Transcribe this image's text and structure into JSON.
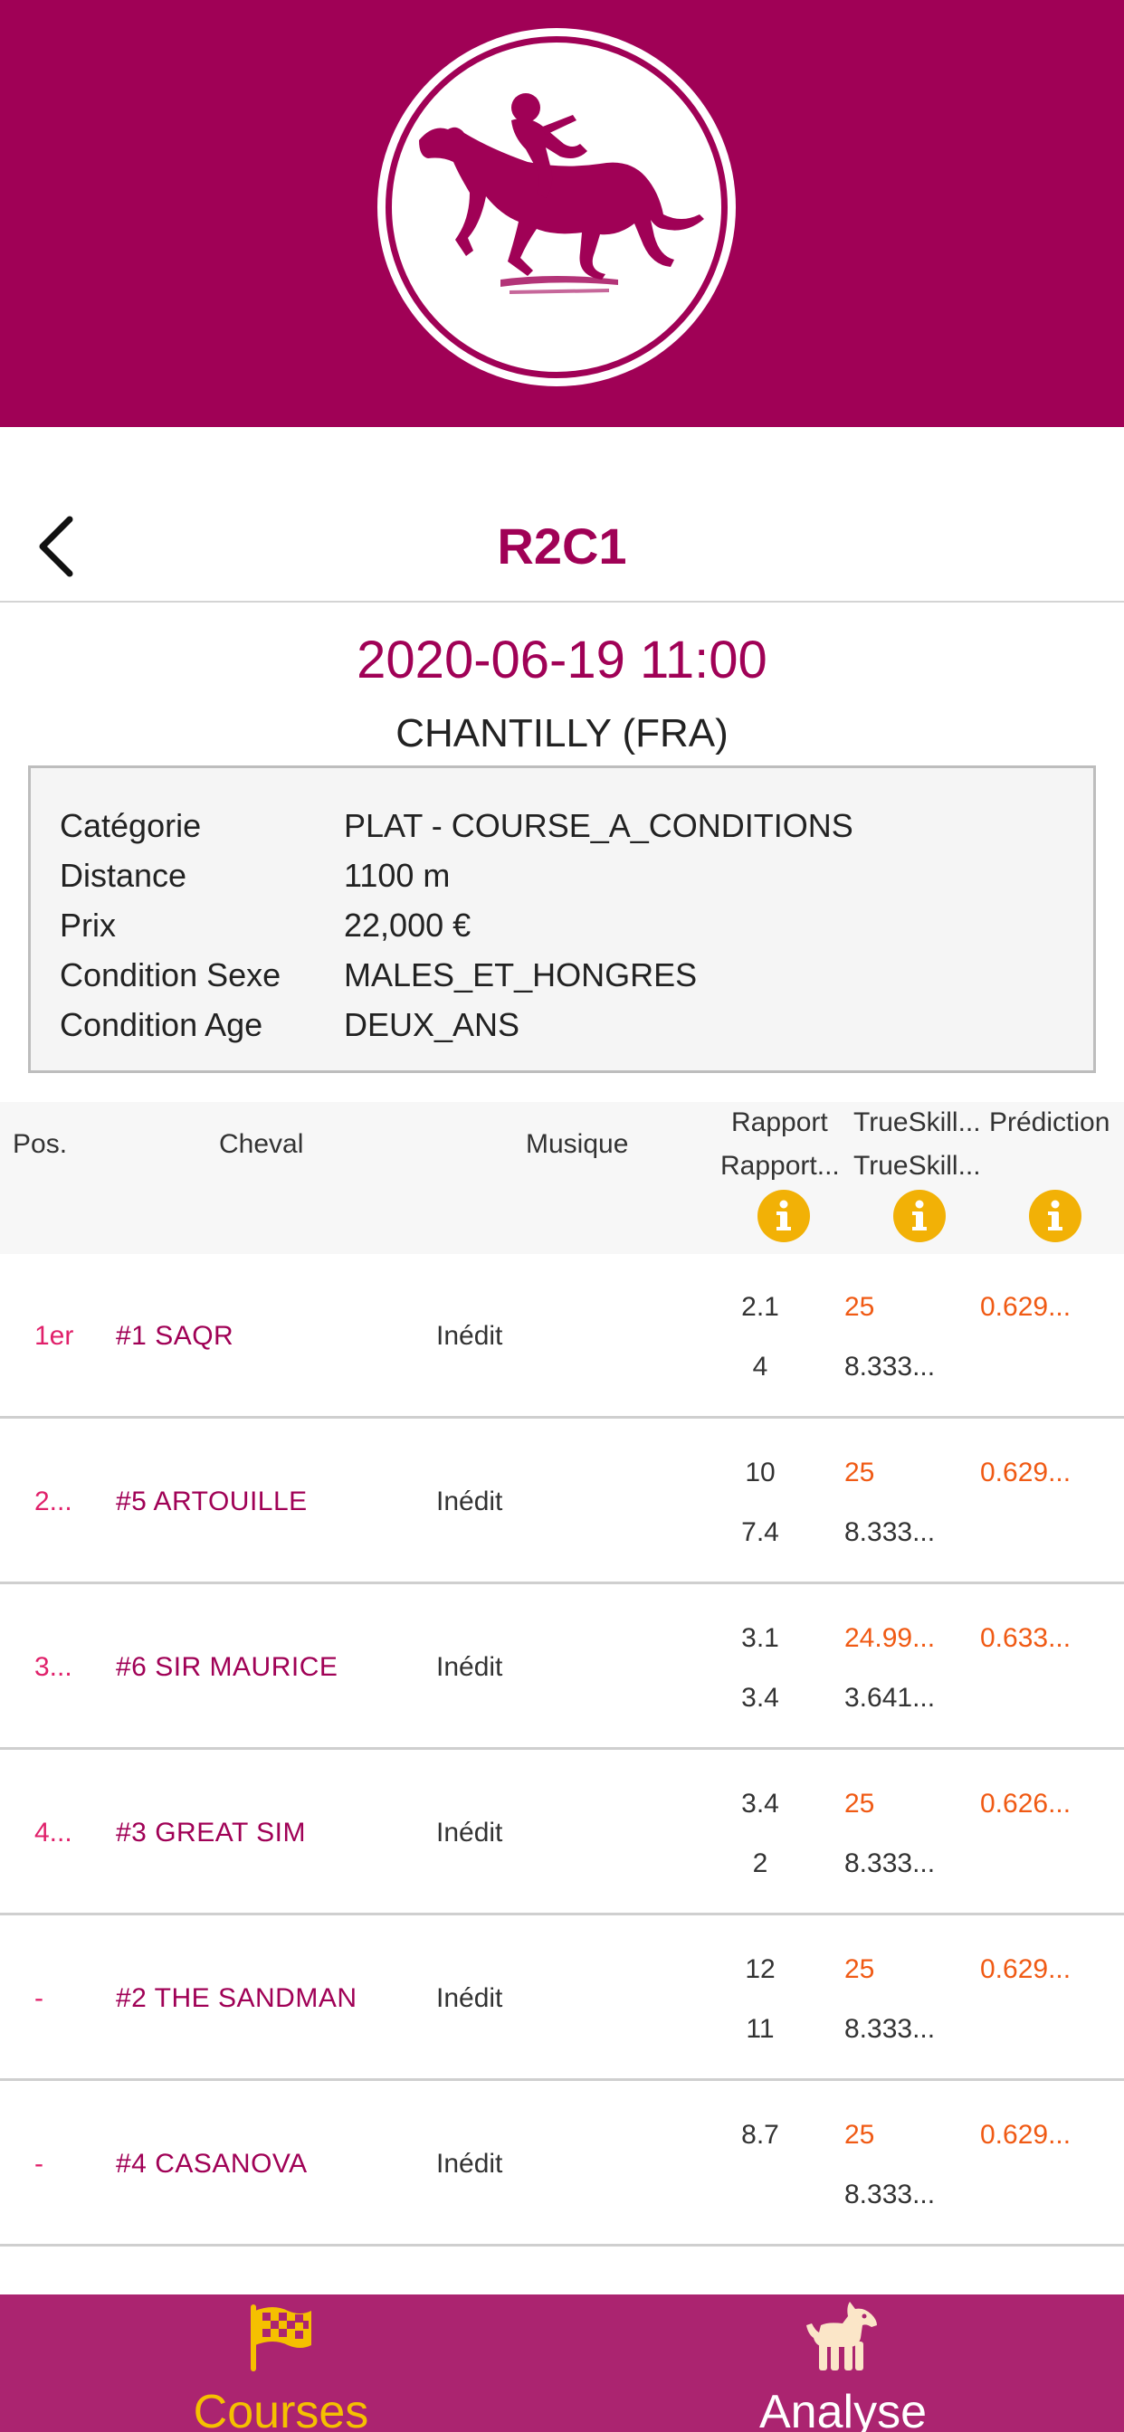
{
  "colors": {
    "brand": "#a00156",
    "accent_orange": "#f05a14",
    "tab_active": "#f5c000",
    "tab_inactive": "#ffffff",
    "tabbar": "#ab2470"
  },
  "nav": {
    "title": "R2C1",
    "back_icon": "chevron-left-icon"
  },
  "race": {
    "datetime": "2020-06-19 11:00",
    "venue": "CHANTILLY (FRA)"
  },
  "details": [
    {
      "label": "Catégorie",
      "value": "PLAT - COURSE_A_CONDITIONS"
    },
    {
      "label": "Distance",
      "value": "1100 m"
    },
    {
      "label": "Prix",
      "value": "22,000 €"
    },
    {
      "label": "Condition Sexe",
      "value": "MALES_ET_HONGRES"
    },
    {
      "label": "Condition Age",
      "value": "DEUX_ANS"
    }
  ],
  "table": {
    "headers": {
      "pos": "Pos.",
      "horse": "Cheval",
      "musique": "Musique",
      "rapport1": "Rapport",
      "rapport2": "Rapport...",
      "trueskill1": "TrueSkill...",
      "trueskill2": "TrueSkill...",
      "prediction": "Prédiction"
    },
    "rows": [
      {
        "pos": "1er",
        "horse": "#1 SAQR",
        "musique": "Inédit",
        "rapport1": "2.1",
        "rapport2": "4",
        "trueskill1": "25",
        "trueskill2": "8.333...",
        "prediction": "0.629..."
      },
      {
        "pos": "2...",
        "horse": "#5 ARTOUILLE",
        "musique": "Inédit",
        "rapport1": "10",
        "rapport2": "7.4",
        "trueskill1": "25",
        "trueskill2": "8.333...",
        "prediction": "0.629..."
      },
      {
        "pos": "3...",
        "horse": "#6 SIR MAURICE",
        "musique": "Inédit",
        "rapport1": "3.1",
        "rapport2": "3.4",
        "trueskill1": "24.99...",
        "trueskill2": "3.641...",
        "prediction": "0.633..."
      },
      {
        "pos": "4...",
        "horse": "#3 GREAT SIM",
        "musique": "Inédit",
        "rapport1": "3.4",
        "rapport2": "2",
        "trueskill1": "25",
        "trueskill2": "8.333...",
        "prediction": "0.626..."
      },
      {
        "pos": "-",
        "horse": "#2 THE SANDMAN",
        "musique": "Inédit",
        "rapport1": "12",
        "rapport2": "11",
        "trueskill1": "25",
        "trueskill2": "8.333...",
        "prediction": "0.629..."
      },
      {
        "pos": "-",
        "horse": "#4 CASANOVA",
        "musique": "Inédit",
        "rapport1": "8.7",
        "rapport2": "",
        "trueskill1": "25",
        "trueskill2": "8.333...",
        "prediction": "0.629..."
      }
    ]
  },
  "tabs": [
    {
      "label": "Courses",
      "icon": "checkered-flag-icon",
      "active": true
    },
    {
      "label": "Analyse",
      "icon": "horse-icon",
      "active": false
    }
  ]
}
